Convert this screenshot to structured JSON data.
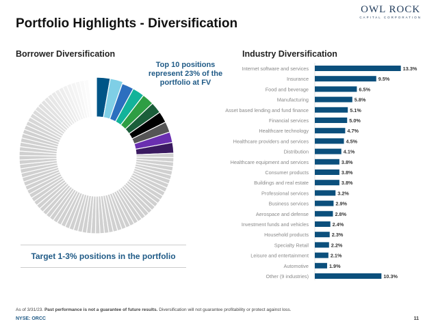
{
  "header": {
    "title": "Portfolio Highlights - Diversification",
    "logo_line1": "OWL ROCK",
    "logo_line2": "CAPITAL CORPORATION"
  },
  "borrower": {
    "title": "Borrower Diversification",
    "callout": "Top 10 positions represent 23% of the portfolio at FV",
    "target": "Target 1-3% positions in the portfolio",
    "top10_colors": [
      "#005587",
      "#7fcfe6",
      "#2c6fbf",
      "#13b39a",
      "#2e9e44",
      "#1b5e3a",
      "#000000",
      "#555555",
      "#6a2fb0",
      "#3a1a60"
    ],
    "other_color": "#d0d0d0"
  },
  "chart_data": {
    "type": "bar",
    "title": "Industry Diversification",
    "orientation": "horizontal",
    "bar_color": "#0b4f7c",
    "categories": [
      "Internet software and services",
      "Insurance",
      "Food and beverage",
      "Manufacturing",
      "Asset based lending and fund finance",
      "Financial services",
      "Healthcare technology",
      "Healthcare providers and services",
      "Distribution",
      "Healthcare equipment and services",
      "Consumer products",
      "Buildings and real estate",
      "Professional services",
      "Business services",
      "Aerospace and defense",
      "Investment funds and vehicles",
      "Household products",
      "Specialty Retail",
      "Leisure and entertainment",
      "Automotive",
      "Other (9 industries)"
    ],
    "values": [
      13.3,
      9.5,
      6.5,
      5.8,
      5.1,
      5.0,
      4.7,
      4.5,
      4.1,
      3.8,
      3.8,
      3.8,
      3.2,
      2.9,
      2.8,
      2.4,
      2.3,
      2.2,
      2.1,
      1.9,
      10.3
    ],
    "labels": [
      "13.3%",
      "9.5%",
      "6.5%",
      "5.8%",
      "5.1%",
      "5.0%",
      "4.7%",
      "4.5%",
      "4.1%",
      "3.8%",
      "3.8%",
      "3.8%",
      "3.2%",
      "2.9%",
      "2.8%",
      "2.4%",
      "2.3%",
      "2.2%",
      "2.1%",
      "1.9%",
      "10.3%"
    ]
  },
  "footer": {
    "asof": "As of 3/31/23.",
    "bold": "Past performance is not a guarantee of future results.",
    "rest": "Diversification will not guarantee profitability or protect against loss.",
    "ticker": "NYSE: ORCC",
    "page": "11"
  }
}
